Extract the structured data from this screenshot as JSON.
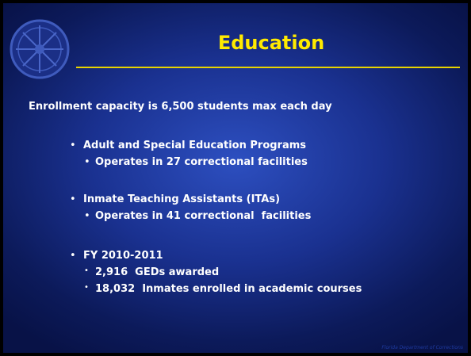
{
  "title": "Education",
  "subtitle": "Enrollment capacity is 6,500 students max each day",
  "bullets": [
    {
      "text": "Adult and Special Education Programs",
      "items": [
        "Operates in 27 correctional facilities"
      ]
    },
    {
      "text": "Inmate Teaching Assistants (ITAs)",
      "items": [
        "Operates in 41 correctional  facilities"
      ]
    },
    {
      "text": "FY 2010-2011",
      "items": [
        "2,916  GEDs awarded",
        "18,032  Inmates enrolled in academic courses"
      ]
    }
  ],
  "footer": "Florida Department of Corrections"
}
